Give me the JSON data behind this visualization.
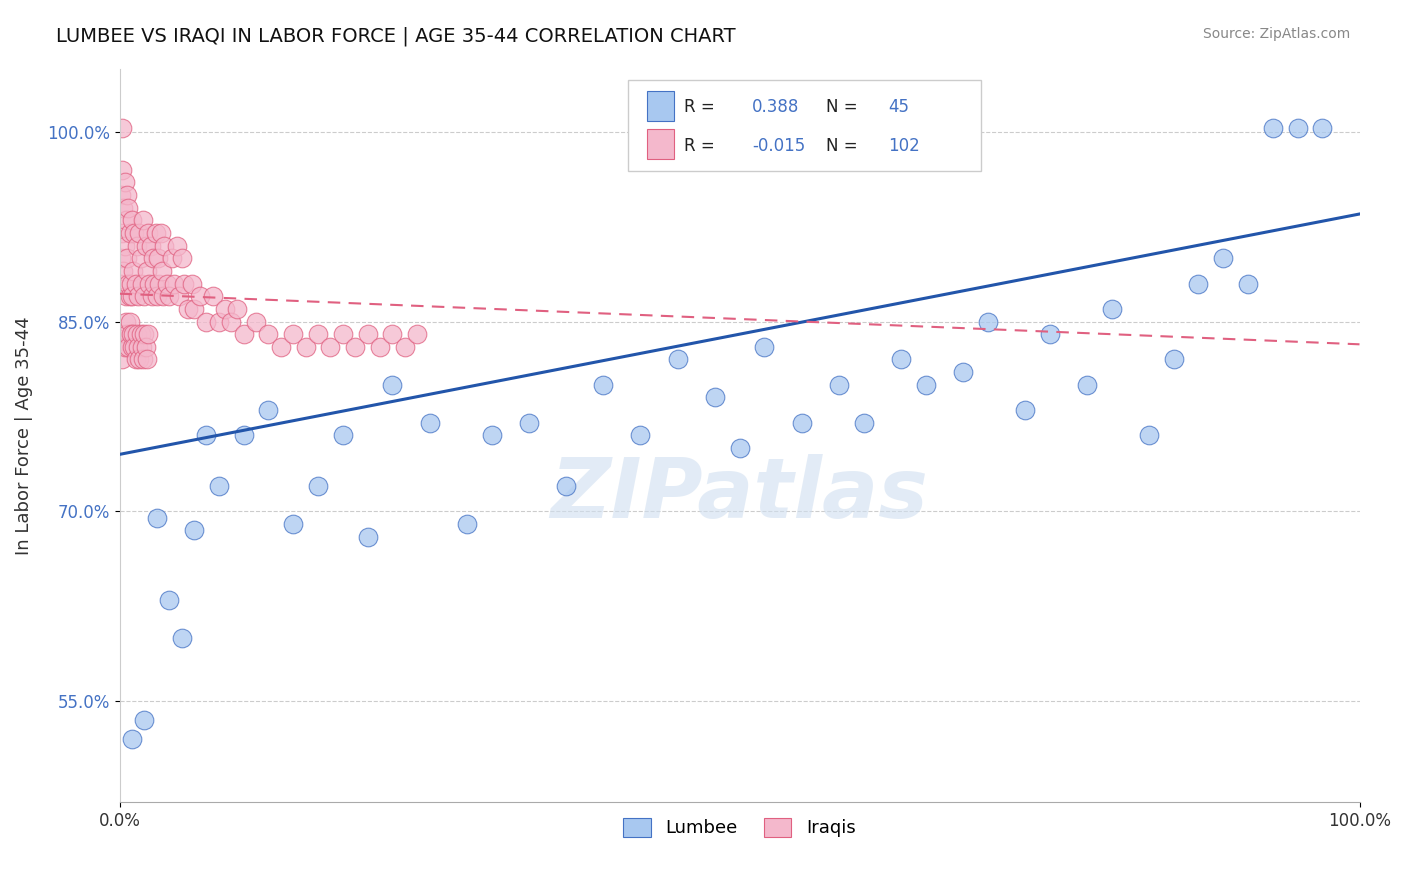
{
  "title": "LUMBEE VS IRAQI IN LABOR FORCE | AGE 35-44 CORRELATION CHART",
  "source_text": "Source: ZipAtlas.com",
  "ylabel": "In Labor Force | Age 35-44",
  "xlim": [
    0.0,
    1.0
  ],
  "ylim": [
    0.47,
    1.05
  ],
  "y_ticks": [
    0.55,
    0.7,
    0.85,
    1.0
  ],
  "y_tick_labels": [
    "55.0%",
    "70.0%",
    "85.0%",
    "100.0%"
  ],
  "lumbee_R": 0.388,
  "lumbee_N": 45,
  "iraqi_R": -0.015,
  "iraqi_N": 102,
  "lumbee_color": "#a8c8f0",
  "iraqi_color": "#f4b8cc",
  "lumbee_edge_color": "#4472c4",
  "iraqi_edge_color": "#e06080",
  "lumbee_line_color": "#2255aa",
  "iraqi_line_color": "#e06080",
  "background_color": "#ffffff",
  "watermark": "ZIPatlas",
  "lumbee_line_y0": 0.745,
  "lumbee_line_y1": 0.935,
  "iraqi_line_y0": 0.872,
  "iraqi_line_y1": 0.832,
  "lumbee_x": [
    0.01,
    0.02,
    0.03,
    0.04,
    0.05,
    0.06,
    0.07,
    0.08,
    0.1,
    0.12,
    0.14,
    0.16,
    0.18,
    0.2,
    0.22,
    0.25,
    0.28,
    0.3,
    0.33,
    0.36,
    0.39,
    0.42,
    0.45,
    0.48,
    0.5,
    0.52,
    0.55,
    0.58,
    0.6,
    0.63,
    0.65,
    0.68,
    0.7,
    0.73,
    0.75,
    0.78,
    0.8,
    0.83,
    0.85,
    0.87,
    0.89,
    0.91,
    0.93,
    0.95,
    0.97
  ],
  "lumbee_y": [
    0.52,
    0.535,
    0.695,
    0.63,
    0.6,
    0.685,
    0.76,
    0.72,
    0.76,
    0.78,
    0.69,
    0.72,
    0.76,
    0.68,
    0.8,
    0.77,
    0.69,
    0.76,
    0.77,
    0.72,
    0.8,
    0.76,
    0.82,
    0.79,
    0.75,
    0.83,
    0.77,
    0.8,
    0.77,
    0.82,
    0.8,
    0.81,
    0.85,
    0.78,
    0.84,
    0.8,
    0.86,
    0.76,
    0.82,
    0.88,
    0.9,
    0.88,
    1.003,
    1.003,
    1.003
  ],
  "iraqi_x": [
    0.001,
    0.001,
    0.001,
    0.002,
    0.002,
    0.002,
    0.003,
    0.003,
    0.004,
    0.004,
    0.005,
    0.005,
    0.006,
    0.006,
    0.007,
    0.007,
    0.008,
    0.008,
    0.009,
    0.01,
    0.01,
    0.011,
    0.012,
    0.013,
    0.014,
    0.015,
    0.016,
    0.017,
    0.018,
    0.019,
    0.02,
    0.021,
    0.022,
    0.023,
    0.024,
    0.025,
    0.026,
    0.027,
    0.028,
    0.029,
    0.03,
    0.031,
    0.032,
    0.033,
    0.034,
    0.035,
    0.036,
    0.038,
    0.04,
    0.042,
    0.044,
    0.046,
    0.048,
    0.05,
    0.052,
    0.055,
    0.058,
    0.06,
    0.065,
    0.07,
    0.075,
    0.08,
    0.085,
    0.09,
    0.095,
    0.1,
    0.11,
    0.12,
    0.13,
    0.14,
    0.15,
    0.16,
    0.17,
    0.18,
    0.19,
    0.2,
    0.21,
    0.22,
    0.23,
    0.24,
    0.002,
    0.003,
    0.004,
    0.005,
    0.006,
    0.007,
    0.008,
    0.009,
    0.01,
    0.011,
    0.012,
    0.013,
    0.014,
    0.015,
    0.016,
    0.017,
    0.018,
    0.019,
    0.02,
    0.021,
    0.022,
    0.023
  ],
  "iraqi_y": [
    0.88,
    0.9,
    0.95,
    0.92,
    0.97,
    1.003,
    0.89,
    0.94,
    0.91,
    0.96,
    0.87,
    0.93,
    0.9,
    0.95,
    0.88,
    0.94,
    0.87,
    0.92,
    0.88,
    0.87,
    0.93,
    0.89,
    0.92,
    0.88,
    0.91,
    0.87,
    0.92,
    0.9,
    0.88,
    0.93,
    0.87,
    0.91,
    0.89,
    0.92,
    0.88,
    0.91,
    0.87,
    0.9,
    0.88,
    0.92,
    0.87,
    0.9,
    0.88,
    0.92,
    0.89,
    0.87,
    0.91,
    0.88,
    0.87,
    0.9,
    0.88,
    0.91,
    0.87,
    0.9,
    0.88,
    0.86,
    0.88,
    0.86,
    0.87,
    0.85,
    0.87,
    0.85,
    0.86,
    0.85,
    0.86,
    0.84,
    0.85,
    0.84,
    0.83,
    0.84,
    0.83,
    0.84,
    0.83,
    0.84,
    0.83,
    0.84,
    0.83,
    0.84,
    0.83,
    0.84,
    0.82,
    0.84,
    0.83,
    0.85,
    0.84,
    0.83,
    0.85,
    0.84,
    0.83,
    0.84,
    0.83,
    0.82,
    0.84,
    0.83,
    0.82,
    0.84,
    0.83,
    0.82,
    0.84,
    0.83,
    0.82,
    0.84
  ]
}
